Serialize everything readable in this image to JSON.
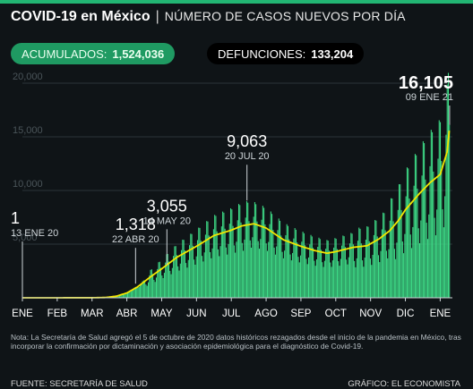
{
  "header": {
    "title": "COVID-19 en México",
    "separator": "|",
    "subtitle": "NÚMERO DE CASOS NUEVOS POR DÍA"
  },
  "badges": {
    "accumulated_label": "ACUMULADOS:",
    "accumulated_value": "1,524,036",
    "deaths_label": "DEFUNCIONES:",
    "deaths_value": "133,204"
  },
  "note": "Nota: La Secretaría de Salud agregó el 5 de octubre de 2020 datos históricos rezagados desde el inicio de la pandemia en México, tras incorporar la confirmación por dictaminación y asociación epidemiológica para el diagnóstico de Covid-19.",
  "footer": {
    "source": "FUENTE: SECRETARÍA DE SALUD",
    "credit": "GRÁFICO: EL ECONOMISTA"
  },
  "colors": {
    "accent": "#22b573",
    "bars": "#3fe08a",
    "trend": "#f2e600",
    "background": "#0f1417"
  },
  "chart_data": {
    "type": "bar",
    "ylim": [
      0,
      20000
    ],
    "y_ticks": [
      {
        "value": 0,
        "label": ""
      },
      {
        "value": 5000,
        "label": "5,000"
      },
      {
        "value": 10000,
        "label": "10,000"
      },
      {
        "value": 15000,
        "label": "15,000"
      },
      {
        "value": 20000,
        "label": "20,000"
      }
    ],
    "x_range": [
      0,
      12.35
    ],
    "x_ticks": [
      {
        "pos": 0,
        "label": "ENE"
      },
      {
        "pos": 1,
        "label": "FEB"
      },
      {
        "pos": 2,
        "label": "MAR"
      },
      {
        "pos": 3,
        "label": "ABR"
      },
      {
        "pos": 4,
        "label": "MAY"
      },
      {
        "pos": 5,
        "label": "JUN"
      },
      {
        "pos": 6,
        "label": "JUL"
      },
      {
        "pos": 7,
        "label": "AGO"
      },
      {
        "pos": 8,
        "label": "SEP"
      },
      {
        "pos": 9,
        "label": "OCT"
      },
      {
        "pos": 10,
        "label": "NOV"
      },
      {
        "pos": 11,
        "label": "DIC"
      },
      {
        "pos": 12,
        "label": "ENE"
      }
    ],
    "daily_cases": {
      "description_months": [
        0,
        2.0,
        2.4,
        2.7,
        3.0,
        3.3,
        3.7,
        4.0,
        4.45,
        5.0,
        5.5,
        6.0,
        6.3,
        6.65,
        7.0,
        7.5,
        8.0,
        8.4,
        8.75,
        9.0,
        9.5,
        9.9,
        10.25,
        10.55,
        10.8,
        11.0,
        11.4,
        11.7,
        12.0,
        12.2,
        12.27
      ],
      "trend_values": [
        0,
        5,
        30,
        150,
        450,
        1000,
        2000,
        2700,
        3800,
        4800,
        5800,
        6300,
        6700,
        6900,
        6500,
        5400,
        4800,
        4400,
        4150,
        4300,
        4700,
        4850,
        5500,
        6250,
        7200,
        8200,
        9700,
        10700,
        11500,
        13600,
        15900
      ]
    },
    "annotations": [
      {
        "month": 0.0,
        "value": 1,
        "value_label": "1",
        "date_label": "13 ENE 20"
      },
      {
        "month": 3.25,
        "value": 1318,
        "value_label": "1,318",
        "date_label": "22 ABR 20"
      },
      {
        "month": 4.15,
        "value": 3055,
        "value_label": "3,055",
        "date_label": "14 MAY 20"
      },
      {
        "month": 6.45,
        "value": 9063,
        "value_label": "9,063",
        "date_label": "20 JUL 20"
      },
      {
        "month": 12.27,
        "value": 16105,
        "value_label": "16,105",
        "date_label": "09 ENE 21"
      }
    ]
  }
}
